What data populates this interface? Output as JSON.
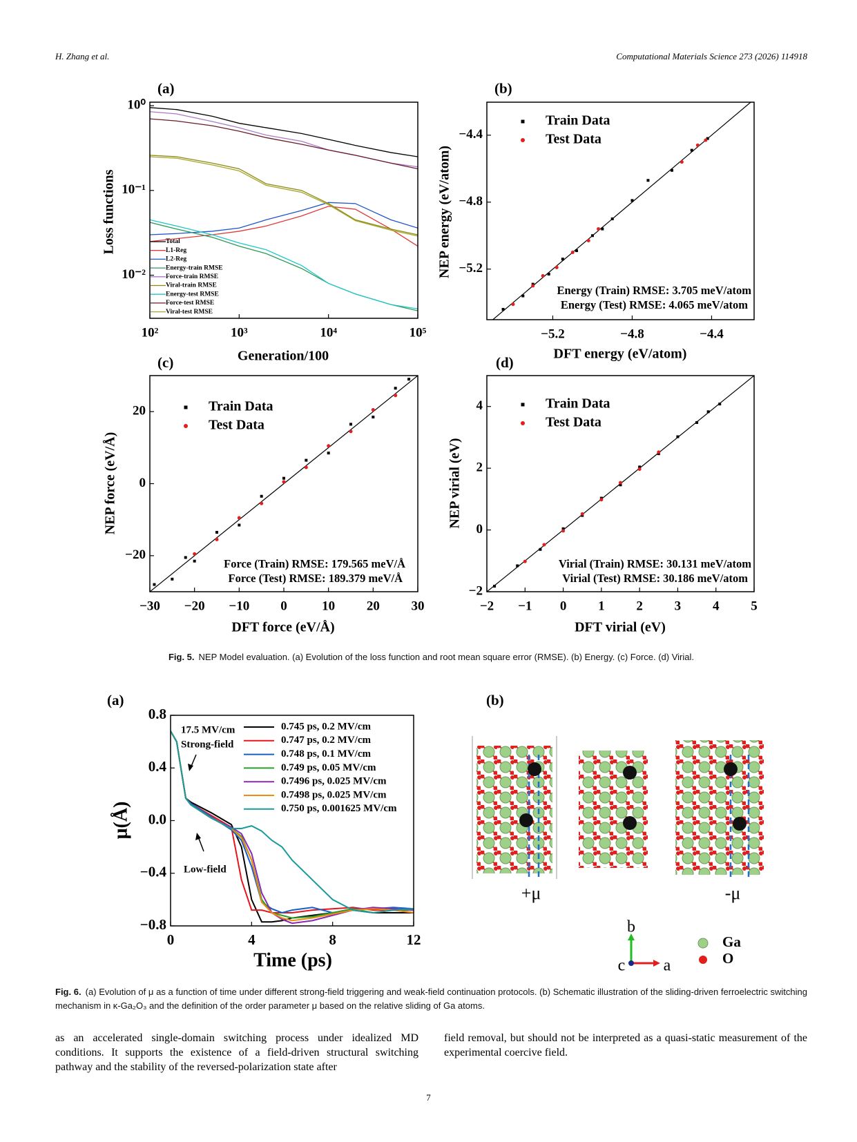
{
  "header": {
    "authors": "H. Zhang et al.",
    "journal": "Computational Materials Science 273 (2026) 114918"
  },
  "chart_data": [
    {
      "type": "line",
      "panel_label": "(a)",
      "x_label": "Generation/100",
      "y_label": "Loss functions",
      "xscale": "log",
      "yscale": "log",
      "xlim": [
        100,
        100000
      ],
      "ylim": [
        0.0031,
        1.1
      ],
      "xticks": [
        {
          "value": 100,
          "label": "10²"
        },
        {
          "value": 1000,
          "label": "10³"
        },
        {
          "value": 10000,
          "label": "10⁴"
        },
        {
          "value": 100000,
          "label": "10⁵"
        }
      ],
      "yticks": [
        {
          "value": 0.01,
          "label": "10⁻²"
        },
        {
          "value": 0.1,
          "label": "10⁻¹"
        },
        {
          "value": 1,
          "label": "10⁰"
        }
      ],
      "legend": "lower left",
      "x": [
        100,
        200,
        500,
        1000,
        2000,
        5000,
        10000,
        20000,
        50000,
        100000
      ],
      "series": [
        {
          "name": "Total",
          "color": "#000000",
          "values": [
            0.95,
            0.9,
            0.75,
            0.62,
            0.55,
            0.47,
            0.4,
            0.34,
            0.28,
            0.25
          ]
        },
        {
          "name": "L1-Reg",
          "color": "#e03a3a",
          "values": [
            0.025,
            0.027,
            0.03,
            0.033,
            0.038,
            0.05,
            0.065,
            0.06,
            0.035,
            0.022
          ]
        },
        {
          "name": "L2-Reg",
          "color": "#1f55c8",
          "values": [
            0.03,
            0.031,
            0.033,
            0.036,
            0.045,
            0.058,
            0.072,
            0.07,
            0.045,
            0.036
          ]
        },
        {
          "name": "Energy-train RMSE",
          "color": "#2e9a5a",
          "values": [
            0.042,
            0.035,
            0.028,
            0.022,
            0.018,
            0.012,
            0.008,
            0.006,
            0.0045,
            0.0038
          ]
        },
        {
          "name": "Force-train RMSE",
          "color": "#a77ac8",
          "values": [
            0.85,
            0.8,
            0.65,
            0.55,
            0.45,
            0.38,
            0.3,
            0.26,
            0.21,
            0.19
          ]
        },
        {
          "name": "Viral-train RMSE",
          "color": "#8a8a10",
          "values": [
            0.26,
            0.25,
            0.21,
            0.18,
            0.12,
            0.1,
            0.07,
            0.045,
            0.035,
            0.03
          ]
        },
        {
          "name": "Energy-test RMSE",
          "color": "#1ec8c8",
          "values": [
            0.045,
            0.038,
            0.03,
            0.024,
            0.02,
            0.013,
            0.008,
            0.006,
            0.0045,
            0.004
          ]
        },
        {
          "name": "Force-test RMSE",
          "color": "#6a1a2a",
          "values": [
            0.7,
            0.66,
            0.58,
            0.5,
            0.42,
            0.35,
            0.3,
            0.26,
            0.21,
            0.18
          ]
        },
        {
          "name": "Viral-test RMSE",
          "color": "#a6a630",
          "values": [
            0.25,
            0.24,
            0.2,
            0.17,
            0.115,
            0.095,
            0.068,
            0.044,
            0.034,
            0.029
          ]
        }
      ]
    },
    {
      "type": "scatter",
      "panel_label": "(b)",
      "x_label": "DFT energy (eV/atom)",
      "y_label": "NEP energy (eV/atom)",
      "xlim": [
        -5.532,
        -4.186
      ],
      "ylim": [
        -5.502,
        -4.203
      ],
      "xticks": [
        {
          "value": -5.2,
          "label": "−5.2"
        },
        {
          "value": -4.8,
          "label": "−4.8"
        },
        {
          "value": -4.4,
          "label": "−4.4"
        }
      ],
      "yticks": [
        {
          "value": -5.2,
          "label": "−5.2"
        },
        {
          "value": -4.8,
          "label": "−4.8"
        },
        {
          "value": -4.4,
          "label": "−4.4"
        }
      ],
      "legend": "upper left",
      "diagonal": true,
      "annotations": [
        "Energy (Train) RMSE: 3.705 meV/atom",
        "Energy (Test) RMSE: 4.065 meV/atom"
      ],
      "series": [
        {
          "name": "Train Data",
          "color": "#000000",
          "x": [
            -5.45,
            -5.35,
            -5.3,
            -5.22,
            -5.15,
            -5.08,
            -5.0,
            -4.95,
            -4.9,
            -4.8,
            -4.72,
            -4.6,
            -4.5,
            -4.42
          ],
          "y": [
            -5.44,
            -5.36,
            -5.29,
            -5.23,
            -5.14,
            -5.09,
            -5.0,
            -4.96,
            -4.9,
            -4.79,
            -4.67,
            -4.61,
            -4.49,
            -4.42
          ]
        },
        {
          "name": "Test Data",
          "color": "#e02020",
          "x": [
            -5.4,
            -5.3,
            -5.25,
            -5.18,
            -5.1,
            -5.02,
            -4.97,
            -4.55,
            -4.47,
            -4.43
          ],
          "y": [
            -5.41,
            -5.3,
            -5.24,
            -5.19,
            -5.1,
            -5.03,
            -4.96,
            -4.56,
            -4.46,
            -4.43
          ]
        }
      ]
    },
    {
      "type": "scatter",
      "panel_label": "(c)",
      "x_label": "DFT force (eV/Å)",
      "y_label": "NEP force (eV/Å)",
      "xlim": [
        -30,
        30
      ],
      "ylim": [
        -30,
        30
      ],
      "xticks": [
        {
          "value": -30,
          "label": "−30"
        },
        {
          "value": -20,
          "label": "−20"
        },
        {
          "value": -10,
          "label": "−10"
        },
        0,
        10,
        20,
        30
      ],
      "yticks": [
        {
          "value": -20,
          "label": "−20"
        },
        0,
        20
      ],
      "legend": "upper left",
      "diagonal": true,
      "annotations": [
        "Force (Train) RMSE: 179.565 meV/Å",
        "Force (Test) RMSE: 189.379 meV/Å"
      ],
      "series": [
        {
          "name": "Train Data",
          "color": "#000000",
          "x": [
            -29,
            -25,
            -22,
            -20,
            -15,
            -10,
            -5,
            0,
            5,
            10,
            15,
            20,
            25,
            28
          ],
          "y": [
            -28,
            -26.5,
            -20.5,
            -21.5,
            -13.5,
            -11.5,
            -3.5,
            1.5,
            6.5,
            8.5,
            16.5,
            18.5,
            26.5,
            29
          ]
        },
        {
          "name": "Test Data",
          "color": "#e02020",
          "x": [
            -20,
            -15,
            -10,
            -5,
            0,
            5,
            10,
            15,
            20,
            25
          ],
          "y": [
            -19.5,
            -15.5,
            -9.5,
            -5.5,
            0.5,
            4.5,
            10.5,
            14.5,
            20.5,
            24.5
          ]
        }
      ]
    },
    {
      "type": "scatter",
      "panel_label": "(d)",
      "x_label": "DFT virial (eV)",
      "y_label": "NEP virial (eV)",
      "xlim": [
        -2,
        5
      ],
      "ylim": [
        -2,
        5
      ],
      "xticks": [
        {
          "value": -2,
          "label": "−2"
        },
        {
          "value": -1,
          "label": "−1"
        },
        0,
        1,
        2,
        3,
        4,
        5
      ],
      "yticks": [
        {
          "value": -2,
          "label": "−2"
        },
        0,
        2,
        4
      ],
      "legend": "upper left",
      "diagonal": true,
      "annotations": [
        "Virial (Train) RMSE: 30.131 meV/atom",
        "Virial (Test) RMSE: 30.186 meV/atom"
      ],
      "series": [
        {
          "name": "Train Data",
          "color": "#000000",
          "x": [
            -1.8,
            -1.2,
            -0.6,
            0,
            0.5,
            1,
            1.5,
            2,
            2.5,
            3,
            3.5,
            3.8,
            4.1
          ],
          "y": [
            -1.82,
            -1.16,
            -0.63,
            0.04,
            0.47,
            1.03,
            1.46,
            2.04,
            2.47,
            3.02,
            3.48,
            3.83,
            4.08
          ]
        },
        {
          "name": "Test Data",
          "color": "#e02020",
          "x": [
            -1,
            -0.5,
            0,
            0.5,
            1,
            1.5,
            2,
            2.5
          ],
          "y": [
            -1.02,
            -0.48,
            -0.03,
            0.52,
            0.98,
            1.53,
            1.97,
            2.52
          ]
        }
      ]
    },
    {
      "type": "line",
      "panel_label": "(a)",
      "x_label": "Time (ps)",
      "y_label": "μ(Å)",
      "xlim": [
        0,
        12
      ],
      "ylim": [
        -0.8,
        0.8
      ],
      "xticks": [
        0,
        4,
        8,
        12
      ],
      "yticks": [
        {
          "value": -0.8,
          "label": "−0.8"
        },
        {
          "value": -0.4,
          "label": "−0.4"
        },
        {
          "value": 0,
          "label": "0.0"
        },
        0.4,
        0.8
      ],
      "legend": "upper right",
      "annotations": [
        "17.5 MV/cm",
        "Strong-field",
        "Low-field"
      ],
      "x": [
        0,
        0.3,
        0.75,
        1,
        2,
        3,
        3.5,
        4,
        4.5,
        5,
        5.5,
        6,
        7,
        8,
        9,
        10,
        11,
        12
      ],
      "series": [
        {
          "name": "0.745 ps, 0.2 MV/cm",
          "color": "#000000",
          "values": [
            0.68,
            0.6,
            0.17,
            0.14,
            0.06,
            -0.03,
            -0.2,
            -0.6,
            -0.77,
            -0.77,
            -0.76,
            -0.74,
            -0.72,
            -0.7,
            -0.68,
            -0.7,
            -0.7,
            -0.7
          ]
        },
        {
          "name": "0.747 ps, 0.2 MV/cm",
          "color": "#e8141c",
          "values": [
            0.68,
            0.6,
            0.17,
            0.13,
            0.04,
            -0.05,
            -0.45,
            -0.68,
            -0.68,
            -0.7,
            -0.7,
            -0.7,
            -0.68,
            -0.67,
            -0.66,
            -0.68,
            -0.68,
            -0.7
          ]
        },
        {
          "name": "0.748 ps, 0.1 MV/cm",
          "color": "#1560c8",
          "values": [
            0.68,
            0.6,
            0.17,
            0.13,
            0.03,
            -0.07,
            -0.15,
            -0.35,
            -0.62,
            -0.67,
            -0.7,
            -0.68,
            -0.66,
            -0.7,
            -0.67,
            -0.67,
            -0.66,
            -0.67
          ]
        },
        {
          "name": "0.749 ps, 0.05 MV/cm",
          "color": "#2aa02a",
          "values": [
            0.68,
            0.6,
            0.17,
            0.12,
            0.02,
            -0.06,
            -0.12,
            -0.3,
            -0.6,
            -0.7,
            -0.72,
            -0.74,
            -0.73,
            -0.7,
            -0.67,
            -0.7,
            -0.68,
            -0.68
          ]
        },
        {
          "name": "0.7496 ps, 0.025 MV/cm",
          "color": "#8a2ab0",
          "values": [
            0.68,
            0.6,
            0.17,
            0.12,
            0.02,
            -0.05,
            -0.1,
            -0.25,
            -0.55,
            -0.7,
            -0.75,
            -0.78,
            -0.76,
            -0.72,
            -0.68,
            -0.66,
            -0.67,
            -0.68
          ]
        },
        {
          "name": "0.7498 ps, 0.025 MV/cm",
          "color": "#f08a10",
          "values": [
            0.68,
            0.6,
            0.17,
            0.12,
            0.02,
            -0.06,
            -0.13,
            -0.3,
            -0.62,
            -0.7,
            -0.74,
            -0.76,
            -0.74,
            -0.71,
            -0.68,
            -0.67,
            -0.68,
            -0.7
          ]
        },
        {
          "name": "0.750 ps, 0.001625 MV/cm",
          "color": "#1a9a9a",
          "values": [
            0.68,
            0.6,
            0.17,
            0.12,
            0.02,
            -0.06,
            -0.06,
            -0.04,
            -0.08,
            -0.15,
            -0.2,
            -0.3,
            -0.45,
            -0.6,
            -0.68,
            -0.7,
            -0.68,
            -0.67
          ]
        }
      ]
    }
  ],
  "schematic": {
    "panel_label": "(b)",
    "plus_label": "+μ",
    "minus_label": "-μ",
    "axis_labels": [
      "b",
      "c",
      "a"
    ],
    "legend": [
      "Ga",
      "O"
    ]
  },
  "captions": [
    {
      "label": "Fig. 5.",
      "text": "NEP Model evaluation. (a) Evolution of the loss function and root mean square error (RMSE). (b) Energy. (c) Force. (d) Virial."
    },
    {
      "label": "Fig. 6.",
      "text": "(a) Evolution of μ as a function of time under different strong-field triggering and weak-field continuation protocols. (b) Schematic illustration of the sliding-driven ferroelectric switching mechanism in κ-Ga₂O₃ and the definition of the order parameter μ based on the relative sliding of Ga atoms."
    }
  ],
  "body": [
    "as an accelerated single-domain switching process under idealized MD conditions. It supports the existence of a field-driven structural switching pathway and the stability of the reversed-polarization state after",
    "field removal, but should not be interpreted as a quasi-static measurement of the experimental coercive field."
  ],
  "page_number": "7"
}
